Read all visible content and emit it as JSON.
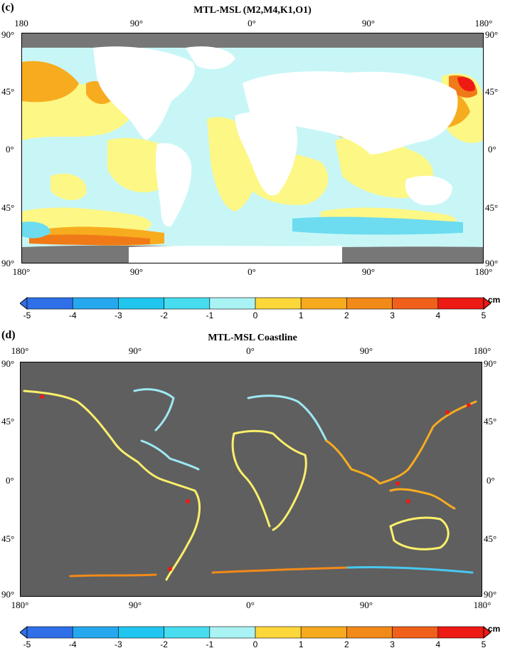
{
  "panel_c": {
    "label": "(c)",
    "title": "MTL-MSL (M2,M4,K1,O1)",
    "lon_top": [
      "180",
      "90°",
      "0°",
      "90°",
      "180°"
    ],
    "lon_bottom": [
      "180°",
      "90°",
      "0°",
      "90°",
      "180°"
    ],
    "lat_left": [
      "90°",
      "45°",
      "0°",
      "45°",
      "90°"
    ],
    "lat_right": [
      "90°",
      "45°",
      "0°",
      "45°",
      "90°"
    ]
  },
  "panel_d": {
    "label": "(d)",
    "title": "MTL-MSL Coastline",
    "lon_top": [
      "180°",
      "90°",
      "0°",
      "90°",
      "180°"
    ],
    "lon_bottom": [
      "180°",
      "90°",
      "0°",
      "90°",
      "180°"
    ],
    "lat_left": [
      "90°",
      "45°",
      "0°",
      "45°",
      "90°"
    ],
    "lat_right": [
      "90°",
      "45°",
      "0°",
      "45°",
      "90°"
    ]
  },
  "colorbar": {
    "unit": "cm",
    "ticks": [
      "-5",
      "-4",
      "-3",
      "-2",
      "-1",
      "0",
      "1",
      "2",
      "3",
      "4",
      "5"
    ],
    "colors": [
      "#2f6fe8",
      "#26a8ee",
      "#20c6ef",
      "#48dcef",
      "#aaf3f4",
      "#fdf96b",
      "#fbd73a",
      "#f7aa1e",
      "#f28a19",
      "#f0601a",
      "#ee1a14"
    ]
  },
  "map_colors": {
    "land": "#ffffff",
    "ice": "#777777",
    "ocean_base": "#c8f6f7",
    "warm": "#fdf785",
    "hot": "#f7ac1f",
    "hotter": "#f07a18",
    "cold": "#6ddcf0"
  }
}
